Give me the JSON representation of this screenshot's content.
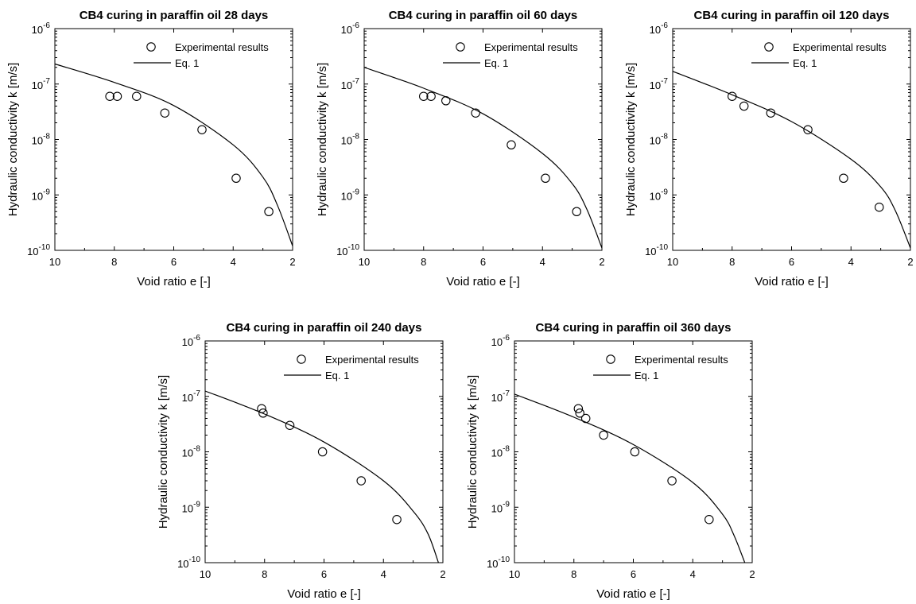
{
  "chart_data": [
    {
      "type": "scatter",
      "title": "CB4 curing in paraffin oil 28 days",
      "xlabel": "Void ratio e [-]",
      "ylabel": "Hydraulic conductivity k [m/s]",
      "xlim": [
        10,
        2
      ],
      "x_reversed": true,
      "ylim": [
        1e-10,
        1e-06
      ],
      "yscale": "log",
      "x_ticks": [
        10,
        8,
        6,
        4,
        2
      ],
      "y_tick_exponents": [
        -10,
        -9,
        -8,
        -7,
        -6
      ],
      "legend_position": "top-right",
      "grid": false,
      "series": [
        {
          "name": "Experimental results",
          "marker": "open-circle",
          "points": [
            [
              8.15,
              6e-08
            ],
            [
              7.9,
              6e-08
            ],
            [
              7.25,
              6e-08
            ],
            [
              6.3,
              3e-08
            ],
            [
              5.05,
              1.5e-08
            ],
            [
              3.9,
              2e-09
            ],
            [
              2.8,
              5e-10
            ]
          ]
        },
        {
          "name": "Eq. 1",
          "style": "line",
          "points": [
            [
              10,
              2.3e-07
            ],
            [
              8,
              1.07e-07
            ],
            [
              6,
              4.1e-08
            ],
            [
              4,
              8e-09
            ],
            [
              3,
              2.1e-09
            ],
            [
              2.5,
              6.3e-10
            ],
            [
              2,
              1.2e-10
            ]
          ]
        }
      ]
    },
    {
      "type": "scatter",
      "title": "CB4 curing in paraffin oil 60 days",
      "xlabel": "Void ratio e [-]",
      "ylabel": "Hydraulic conductivity k [m/s]",
      "xlim": [
        10,
        2
      ],
      "x_reversed": true,
      "ylim": [
        1e-10,
        1e-06
      ],
      "yscale": "log",
      "x_ticks": [
        10,
        8,
        6,
        4,
        2
      ],
      "y_tick_exponents": [
        -10,
        -9,
        -8,
        -7,
        -6
      ],
      "legend_position": "top-right",
      "grid": false,
      "series": [
        {
          "name": "Experimental results",
          "marker": "open-circle",
          "points": [
            [
              8.0,
              6e-08
            ],
            [
              7.75,
              6e-08
            ],
            [
              7.25,
              5e-08
            ],
            [
              6.25,
              3e-08
            ],
            [
              5.05,
              8e-09
            ],
            [
              3.9,
              2e-09
            ],
            [
              2.85,
              5e-10
            ]
          ]
        },
        {
          "name": "Eq. 1",
          "style": "line",
          "points": [
            [
              10,
              2e-07
            ],
            [
              8,
              8.4e-08
            ],
            [
              6,
              2.9e-08
            ],
            [
              4,
              5.6e-09
            ],
            [
              3,
              1.6e-09
            ],
            [
              2.5,
              5.4e-10
            ],
            [
              2,
              1.1e-10
            ]
          ]
        }
      ]
    },
    {
      "type": "scatter",
      "title": "CB4 curing in paraffin oil 120 days",
      "xlabel": "Void ratio e [-]",
      "ylabel": "Hydraulic conductivity k [m/s]",
      "xlim": [
        10,
        2
      ],
      "x_reversed": true,
      "ylim": [
        1e-10,
        1e-06
      ],
      "yscale": "log",
      "x_ticks": [
        10,
        8,
        6,
        4,
        2
      ],
      "y_tick_exponents": [
        -10,
        -9,
        -8,
        -7,
        -6
      ],
      "legend_position": "top-right",
      "grid": false,
      "series": [
        {
          "name": "Experimental results",
          "marker": "open-circle",
          "points": [
            [
              8.0,
              6e-08
            ],
            [
              7.6,
              4e-08
            ],
            [
              6.7,
              3e-08
            ],
            [
              5.45,
              1.5e-08
            ],
            [
              4.25,
              2e-09
            ],
            [
              3.05,
              6e-10
            ]
          ]
        },
        {
          "name": "Eq. 1",
          "style": "line",
          "points": [
            [
              10,
              1.7e-07
            ],
            [
              8,
              6.4e-08
            ],
            [
              6,
              2.1e-08
            ],
            [
              4,
              4.4e-09
            ],
            [
              3,
              1.4e-09
            ],
            [
              2.5,
              5.1e-10
            ],
            [
              2,
              1.1e-10
            ]
          ]
        }
      ]
    },
    {
      "type": "scatter",
      "title": "CB4 curing in paraffin oil 240 days",
      "xlabel": "Void ratio e [-]",
      "ylabel": "Hydraulic conductivity k [m/s]",
      "xlim": [
        10,
        2
      ],
      "x_reversed": true,
      "ylim": [
        1e-10,
        1e-06
      ],
      "yscale": "log",
      "x_ticks": [
        10,
        8,
        6,
        4,
        2
      ],
      "y_tick_exponents": [
        -10,
        -9,
        -8,
        -7,
        -6
      ],
      "legend_position": "top-right",
      "grid": false,
      "series": [
        {
          "name": "Experimental results",
          "marker": "open-circle",
          "points": [
            [
              8.1,
              6e-08
            ],
            [
              8.05,
              5e-08
            ],
            [
              7.15,
              3e-08
            ],
            [
              6.05,
              1e-08
            ],
            [
              4.75,
              3e-09
            ],
            [
              3.55,
              6e-10
            ]
          ]
        },
        {
          "name": "Eq. 1",
          "style": "line",
          "points": [
            [
              10,
              1.25e-07
            ],
            [
              8,
              4.8e-08
            ],
            [
              6,
              1.5e-08
            ],
            [
              4,
              3e-09
            ],
            [
              3,
              8.5e-10
            ],
            [
              2.5,
              3.3e-10
            ],
            [
              2.15,
              1e-10
            ]
          ]
        }
      ]
    },
    {
      "type": "scatter",
      "title": "CB4 curing in paraffin oil 360 days",
      "xlabel": "Void ratio e [-]",
      "ylabel": "Hydraulic conductivity k [m/s]",
      "xlim": [
        10,
        2
      ],
      "x_reversed": true,
      "ylim": [
        1e-10,
        1e-06
      ],
      "yscale": "log",
      "x_ticks": [
        10,
        8,
        6,
        4,
        2
      ],
      "y_tick_exponents": [
        -10,
        -9,
        -8,
        -7,
        -6
      ],
      "legend_position": "top-right",
      "grid": false,
      "series": [
        {
          "name": "Experimental results",
          "marker": "open-circle",
          "points": [
            [
              7.85,
              6e-08
            ],
            [
              7.8,
              5e-08
            ],
            [
              7.6,
              4e-08
            ],
            [
              7.0,
              2e-08
            ],
            [
              5.95,
              1e-08
            ],
            [
              4.7,
              3e-09
            ],
            [
              3.45,
              6e-10
            ]
          ]
        },
        {
          "name": "Eq. 1",
          "style": "line",
          "points": [
            [
              10,
              1.1e-07
            ],
            [
              8,
              4.2e-08
            ],
            [
              6,
              1.35e-08
            ],
            [
              4,
              2.8e-09
            ],
            [
              3,
              7.5e-10
            ],
            [
              2.6,
              3e-10
            ],
            [
              2.25,
              1e-10
            ]
          ]
        }
      ]
    }
  ]
}
